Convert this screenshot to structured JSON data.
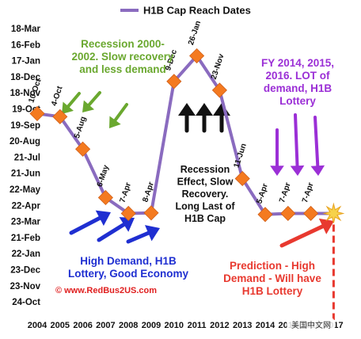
{
  "chart_data": {
    "type": "line",
    "title": "H1B Cap Reach Dates",
    "xlabel": "",
    "ylabel": "",
    "x": [
      "2004",
      "2005",
      "2006",
      "2007",
      "2008",
      "2009",
      "2010",
      "2011",
      "2012",
      "2013",
      "2014",
      "2015",
      "2016",
      "2017"
    ],
    "y_tick_labels": [
      "18-Mar",
      "16-Feb",
      "17-Jan",
      "18-Dec",
      "18-Nov",
      "19-Oct",
      "19-Sep",
      "20-Aug",
      "21-Jul",
      "21-Jun",
      "22-May",
      "22-Apr",
      "23-Mar",
      "21-Feb",
      "22-Jan",
      "23-Dec",
      "23-Nov",
      "24-Oct"
    ],
    "series": [
      {
        "name": "H1B Cap Reach Dates",
        "color": "#8a6bbf",
        "marker_color": "#f47a20",
        "points": [
          {
            "year": "2004",
            "label": "10-Oct",
            "y": "10-Oct"
          },
          {
            "year": "2005",
            "label": "4-Oct",
            "y": "4-Oct"
          },
          {
            "year": "2006",
            "label": "5-Aug",
            "y": "5-Aug"
          },
          {
            "year": "2007",
            "label": "6-May",
            "y": "6-May"
          },
          {
            "year": "2008",
            "label": "7-Apr",
            "y": "7-Apr"
          },
          {
            "year": "2009",
            "label": "8-Apr",
            "y": "8-Apr"
          },
          {
            "year": "2010",
            "label": "9-Dec",
            "y": "9-Dec"
          },
          {
            "year": "2011",
            "label": "26-Jan",
            "y": "26-Jan"
          },
          {
            "year": "2012",
            "label": "23-Nov",
            "y": "23-Nov"
          },
          {
            "year": "2013",
            "label": "11-Jun",
            "y": "11-Jun"
          },
          {
            "year": "2014",
            "label": "5-Apr",
            "y": "5-Apr"
          },
          {
            "year": "2015",
            "label": "7-Apr",
            "y": "7-Apr"
          },
          {
            "year": "2016",
            "label": "7-Apr",
            "y": "7-Apr"
          }
        ]
      }
    ],
    "prediction": {
      "year": "2017",
      "marker": "starburst",
      "color": "#e8392f"
    },
    "annotations": {
      "recession": [
        "Recession 2000-",
        "2002. Slow recovery",
        "and less demand"
      ],
      "fy": [
        "FY 2014, 2015,",
        "2016. LOT of",
        "demand, H1B",
        "Lottery"
      ],
      "effect": [
        "Recession",
        "Effect, Slow",
        "Recovery.",
        "Long Last of",
        "H1B Cap"
      ],
      "demand": [
        "High Demand, H1B",
        "Lottery, Good Economy"
      ],
      "site": "© www.RedBus2US.com",
      "prediction": [
        "Prediction - High",
        "Demand - Will have",
        "H1B Lottery"
      ]
    },
    "annotation_colors": {
      "recession": "#6aa82f",
      "fy": "#9b2fd6",
      "effect": "#111111",
      "demand": "#1f2fd1",
      "site": "#e02020",
      "prediction": "#e8392f"
    },
    "legend": "top-center",
    "grid": false
  },
  "watermark": "美国中文网"
}
